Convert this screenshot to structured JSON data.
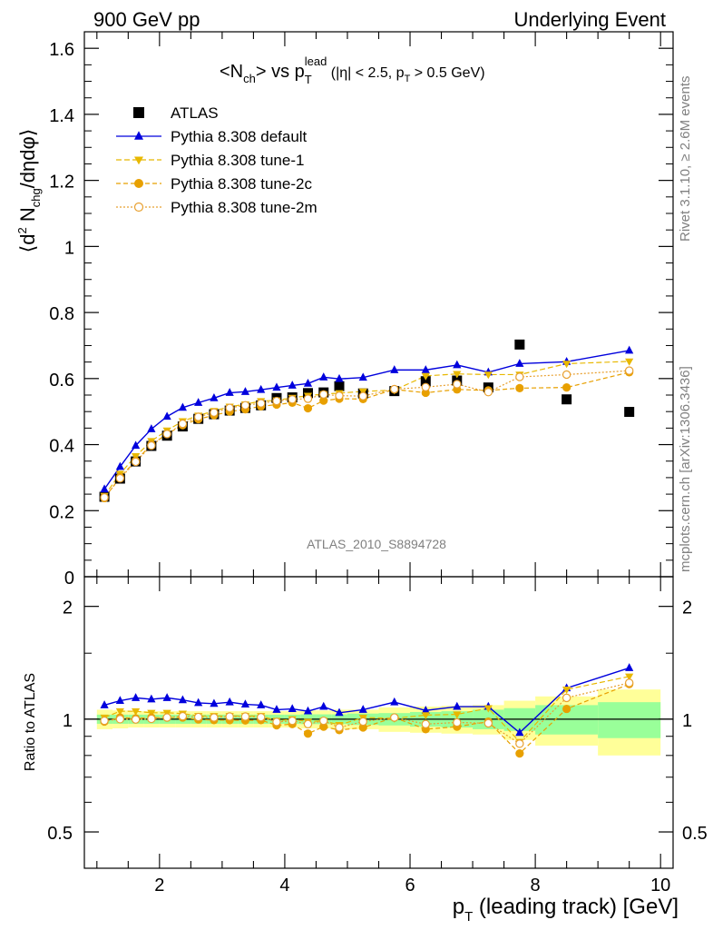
{
  "header": {
    "left": "900 GeV pp",
    "right": "Underlying Event"
  },
  "side_labels": {
    "rivet": "Rivet 3.1.10, ≥ 2.6M events",
    "mcplots": "mcplots.cern.ch [arXiv:1306.3436]"
  },
  "analysis_label": "ATLAS_2010_S8894728",
  "chart_data": [
    {
      "type": "scatter",
      "panel": "main",
      "title_parts": {
        "pre": "<N",
        "pre_sub": "ch",
        "mid": "> vs p",
        "p_sub": "T",
        "p_sup": "lead",
        "cut_a": " (|η| < 2.5, p",
        "cut_sub": "T",
        "cut_b": " > 0.5 GeV)"
      },
      "ylabel_parts": {
        "a": "⟨d",
        "sup": "2",
        "b": " N",
        "sub": "chg",
        "c": "/dηdφ⟩"
      },
      "xlim": [
        0.8,
        10.2
      ],
      "ylim": [
        0,
        1.65
      ],
      "y_ticks": [
        0,
        0.2,
        0.4,
        0.6,
        0.8,
        1,
        1.2,
        1.4,
        1.6
      ],
      "y_tick_labels": [
        "0",
        "0.2",
        "0.4",
        "0.6",
        "0.8",
        "1",
        "1.2",
        "1.4",
        "1.6"
      ],
      "x_ticks": [
        2,
        4,
        6,
        8,
        10
      ],
      "legend_position": "top-left",
      "x": [
        1.12,
        1.37,
        1.62,
        1.87,
        2.12,
        2.37,
        2.62,
        2.87,
        3.12,
        3.37,
        3.62,
        3.87,
        4.12,
        4.37,
        4.62,
        4.87,
        5.25,
        5.75,
        6.25,
        6.75,
        7.25,
        7.75,
        8.5,
        9.5
      ],
      "series": [
        {
          "name": "ATLAS",
          "color": "#000000",
          "values": [
            0.242,
            0.297,
            0.349,
            0.396,
            0.427,
            0.455,
            0.478,
            0.492,
            0.503,
            0.511,
            0.519,
            0.541,
            0.543,
            0.556,
            0.558,
            0.577,
            0.555,
            0.562,
            0.592,
            0.594,
            0.573,
            0.703,
            0.537,
            0.499
          ]
        },
        {
          "name": "Pythia 8.308 default",
          "color": "#0000dd",
          "values": [
            0.265,
            0.333,
            0.397,
            0.447,
            0.485,
            0.512,
            0.527,
            0.541,
            0.557,
            0.56,
            0.566,
            0.573,
            0.579,
            0.585,
            0.604,
            0.599,
            0.603,
            0.626,
            0.626,
            0.641,
            0.619,
            0.645,
            0.651,
            0.685
          ]
        },
        {
          "name": "Pythia 8.308 tune-1",
          "color": "#e8b800",
          "values": [
            0.245,
            0.312,
            0.365,
            0.411,
            0.443,
            0.471,
            0.488,
            0.502,
            0.515,
            0.522,
            0.532,
            0.534,
            0.542,
            0.548,
            0.553,
            0.556,
            0.561,
            0.565,
            0.608,
            0.614,
            0.612,
            0.612,
            0.645,
            0.652
          ]
        },
        {
          "name": "Pythia 8.308 tune-2c",
          "color": "#e8a000",
          "values": [
            0.238,
            0.301,
            0.351,
            0.4,
            0.432,
            0.459,
            0.477,
            0.489,
            0.5,
            0.507,
            0.516,
            0.521,
            0.527,
            0.51,
            0.533,
            0.539,
            0.538,
            0.567,
            0.557,
            0.567,
            0.564,
            0.571,
            0.573,
            0.619
          ]
        },
        {
          "name": "Pythia 8.308 tune-2m",
          "color": "#e8a030",
          "values": [
            0.24,
            0.298,
            0.348,
            0.397,
            0.432,
            0.463,
            0.484,
            0.497,
            0.511,
            0.519,
            0.525,
            0.532,
            0.537,
            0.539,
            0.552,
            0.548,
            0.547,
            0.568,
            0.574,
            0.583,
            0.559,
            0.605,
            0.612,
            0.624
          ]
        }
      ]
    },
    {
      "type": "line",
      "panel": "ratio",
      "ylabel": "Ratio to ATLAS",
      "xlabel_parts": {
        "a": "p",
        "sub": "T",
        "b": " (leading track) [GeV]"
      },
      "xlim": [
        0.8,
        10.2
      ],
      "ylim": [
        0.4,
        2.4
      ],
      "log_y": true,
      "y_ticks": [
        0.5,
        1,
        2
      ],
      "y_tick_labels": [
        "0.5",
        "1",
        "2"
      ],
      "x_ticks": [
        2,
        4,
        6,
        8,
        10
      ],
      "x_tick_labels": [
        "2",
        "4",
        "6",
        "8",
        "10"
      ],
      "band_edges": [
        1,
        1.25,
        1.5,
        1.75,
        2,
        2.25,
        2.5,
        2.75,
        3,
        3.25,
        3.5,
        3.75,
        4,
        4.25,
        4.5,
        4.75,
        5,
        5.5,
        6,
        6.5,
        7,
        7.5,
        8,
        9,
        10
      ],
      "band_stat": [
        0.028,
        0.028,
        0.028,
        0.028,
        0.028,
        0.028,
        0.028,
        0.028,
        0.028,
        0.028,
        0.028,
        0.028,
        0.028,
        0.03,
        0.03,
        0.03,
        0.035,
        0.038,
        0.045,
        0.05,
        0.06,
        0.07,
        0.09,
        0.11
      ],
      "band_total": [
        0.06,
        0.055,
        0.05,
        0.05,
        0.05,
        0.05,
        0.05,
        0.05,
        0.05,
        0.05,
        0.05,
        0.05,
        0.05,
        0.055,
        0.055,
        0.06,
        0.06,
        0.075,
        0.08,
        0.085,
        0.09,
        0.12,
        0.15,
        0.2
      ],
      "x": [
        1.12,
        1.37,
        1.62,
        1.87,
        2.12,
        2.37,
        2.62,
        2.87,
        3.12,
        3.37,
        3.62,
        3.87,
        4.12,
        4.37,
        4.62,
        4.87,
        5.25,
        5.75,
        6.25,
        6.75,
        7.25,
        7.75,
        8.5,
        9.5
      ],
      "series": [
        {
          "name": "Pythia 8.308 default",
          "color": "#0000dd",
          "values": [
            1.09,
            1.12,
            1.14,
            1.13,
            1.14,
            1.125,
            1.105,
            1.1,
            1.11,
            1.095,
            1.09,
            1.06,
            1.065,
            1.05,
            1.08,
            1.04,
            1.06,
            1.11,
            1.055,
            1.08,
            1.08,
            0.92,
            1.21,
            1.37
          ]
        },
        {
          "name": "Pythia 8.308 tune-1",
          "color": "#e8b800",
          "values": [
            1.01,
            1.05,
            1.05,
            1.04,
            1.04,
            1.035,
            1.02,
            1.02,
            1.02,
            1.02,
            1.02,
            0.99,
            1.0,
            0.985,
            0.99,
            0.965,
            1.01,
            1.005,
            1.025,
            1.03,
            1.07,
            0.87,
            1.2,
            1.3
          ]
        },
        {
          "name": "Pythia 8.308 tune-2c",
          "color": "#e8a000",
          "values": [
            0.985,
            1.01,
            1.005,
            1.01,
            1.01,
            1.01,
            0.998,
            0.994,
            0.994,
            0.992,
            0.994,
            0.963,
            0.97,
            0.915,
            0.955,
            0.935,
            0.95,
            1.01,
            0.94,
            0.955,
            0.985,
            0.81,
            1.065,
            1.24
          ]
        },
        {
          "name": "Pythia 8.308 tune-2m",
          "color": "#e8a030",
          "values": [
            0.99,
            1.0,
            0.998,
            1.002,
            1.01,
            1.018,
            1.013,
            1.01,
            1.016,
            1.016,
            1.012,
            0.983,
            0.99,
            0.97,
            0.99,
            0.95,
            0.985,
            1.01,
            0.97,
            0.98,
            0.975,
            0.86,
            1.14,
            1.25
          ]
        }
      ]
    }
  ]
}
